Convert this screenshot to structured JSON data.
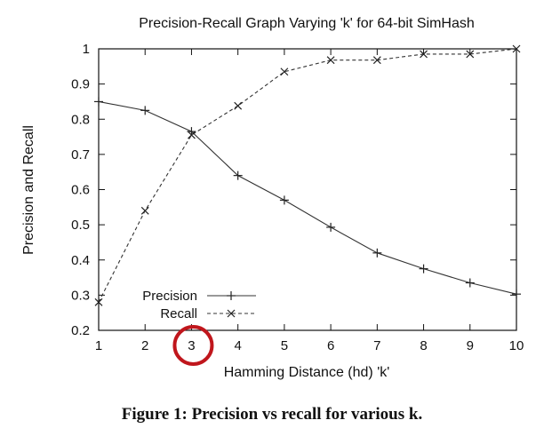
{
  "chart_data": {
    "type": "line",
    "title": "Precision-Recall Graph Varying 'k' for 64-bit SimHash",
    "xlabel": "Hamming Distance (hd) 'k'",
    "ylabel": "Precision and Recall",
    "x": [
      1,
      2,
      3,
      4,
      5,
      6,
      7,
      8,
      9,
      10
    ],
    "xlim": [
      1,
      10
    ],
    "ylim": [
      0.2,
      1.0
    ],
    "xticks": [
      "1",
      "2",
      "3",
      "4",
      "5",
      "6",
      "7",
      "8",
      "9",
      "10"
    ],
    "yticks": [
      "0.2",
      "0.3",
      "0.4",
      "0.5",
      "0.6",
      "0.7",
      "0.8",
      "0.9",
      "1"
    ],
    "grid": false,
    "legend_position": "bottom-left",
    "series": [
      {
        "name": "Precision",
        "marker": "+",
        "line": "solid",
        "values": [
          0.85,
          0.825,
          0.765,
          0.64,
          0.57,
          0.493,
          0.42,
          0.375,
          0.335,
          0.303
        ]
      },
      {
        "name": "Recall",
        "marker": "x",
        "line": "dashed",
        "values": [
          0.28,
          0.54,
          0.755,
          0.838,
          0.935,
          0.968,
          0.968,
          0.985,
          0.985,
          1.0
        ]
      }
    ],
    "highlight": {
      "x": 3,
      "shape": "circle",
      "color": "#c0161c"
    }
  },
  "caption": "Figure 1: Precision vs recall for various k."
}
